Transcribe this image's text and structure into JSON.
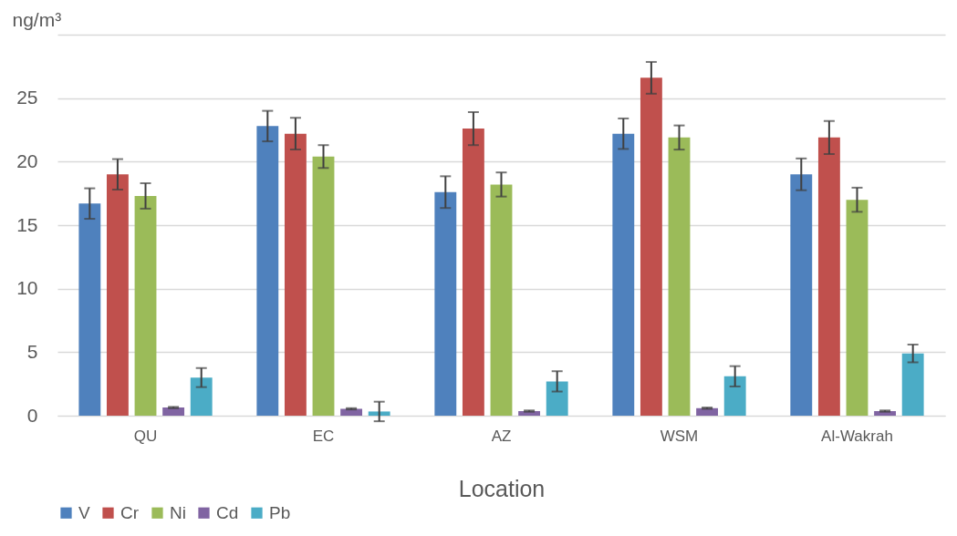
{
  "chart_data": {
    "type": "bar",
    "xlabel": "Location",
    "ylabel": "ng/m³",
    "categories": [
      "QU",
      "EC",
      "AZ",
      "WSM",
      "Al-Wakrah"
    ],
    "series": [
      {
        "name": "V",
        "color": "#4f81bd",
        "values": [
          16.7,
          22.8,
          17.6,
          22.2,
          19.0
        ],
        "errors": [
          1.2,
          1.2,
          1.25,
          1.2,
          1.25
        ]
      },
      {
        "name": "Cr",
        "color": "#c0504d",
        "values": [
          19.0,
          22.2,
          22.6,
          26.6,
          21.9
        ],
        "errors": [
          1.2,
          1.25,
          1.3,
          1.25,
          1.3
        ]
      },
      {
        "name": "Ni",
        "color": "#9bbb59",
        "values": [
          17.3,
          20.4,
          18.2,
          21.9,
          17.0
        ],
        "errors": [
          1.0,
          0.9,
          0.95,
          0.95,
          0.95
        ]
      },
      {
        "name": "Cd",
        "color": "#8064a2",
        "values": [
          0.64,
          0.54,
          0.36,
          0.59,
          0.36
        ],
        "errors": [
          0.05,
          0.05,
          0.05,
          0.05,
          0.05
        ]
      },
      {
        "name": "Pb",
        "color": "#4bacc6",
        "values": [
          3.0,
          0.33,
          2.7,
          3.1,
          4.9
        ],
        "errors": [
          0.75,
          0.77,
          0.8,
          0.8,
          0.7
        ]
      }
    ],
    "ylim": [
      0,
      30
    ],
    "yticks": [
      0,
      5,
      10,
      15,
      20,
      25,
      {
        "value": 30,
        "label": null
      }
    ],
    "grid": "y",
    "legend": "bottom"
  }
}
